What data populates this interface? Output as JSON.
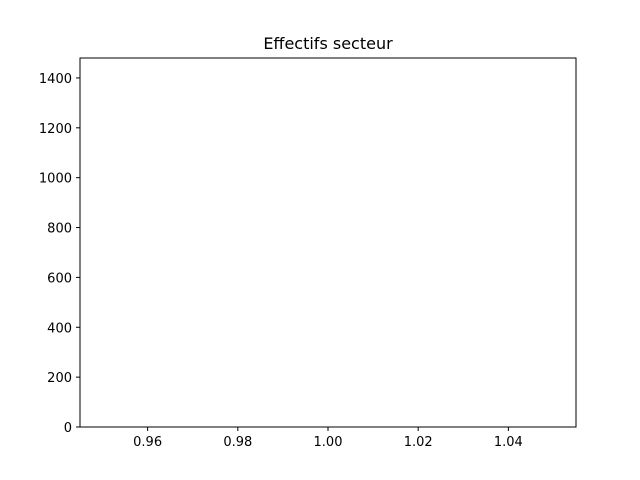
{
  "chart_data": {
    "type": "bar",
    "title": "Effectifs secteur",
    "xlabel": "",
    "ylabel": "",
    "xlim": [
      0.945,
      1.055
    ],
    "ylim": [
      0,
      1480
    ],
    "x_ticks": [
      0.96,
      0.98,
      1.0,
      1.02,
      1.04
    ],
    "x_tick_labels": [
      "0.96",
      "0.98",
      "1.00",
      "1.02",
      "1.04"
    ],
    "y_ticks": [
      0,
      200,
      400,
      600,
      800,
      1000,
      1200,
      1400
    ],
    "y_tick_labels": [
      "0",
      "200",
      "400",
      "600",
      "800",
      "1000",
      "1200",
      "1400"
    ],
    "series": [],
    "grid": false,
    "legend": "none",
    "colors": {
      "axes": "#000000",
      "background": "#ffffff"
    }
  }
}
